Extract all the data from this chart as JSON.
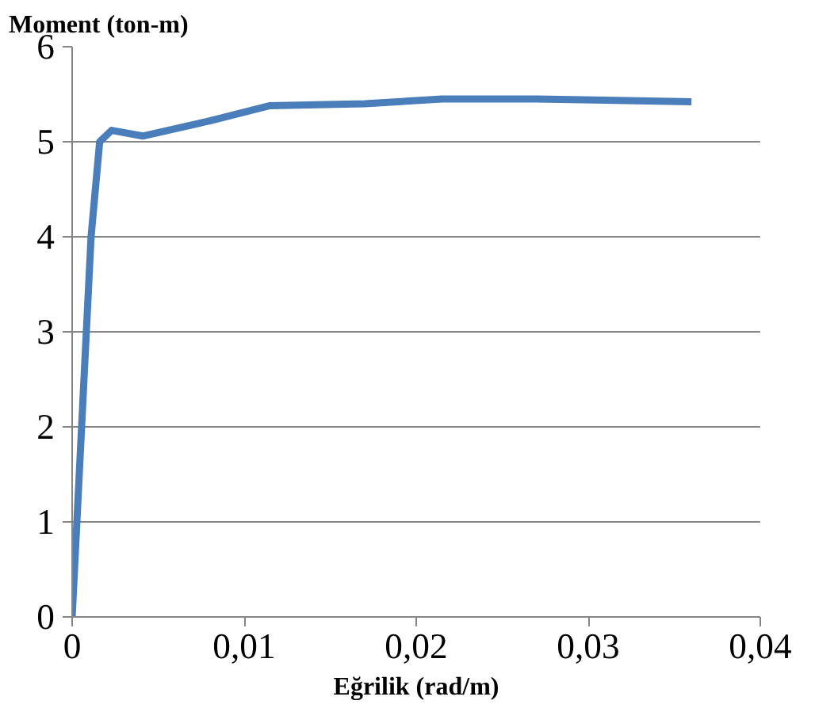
{
  "chart_data": {
    "type": "line",
    "xlabel": "Eğrilik (rad/m)",
    "ylabel": "Moment (ton-m)",
    "x": [
      0,
      0.0011,
      0.0016,
      0.0023,
      0.0041,
      0.008,
      0.0115,
      0.017,
      0.0215,
      0.027,
      0.036
    ],
    "series": [
      {
        "color": "#4a7ebb",
        "values": [
          0,
          4.0,
          5.0,
          5.12,
          5.06,
          5.22,
          5.38,
          5.4,
          5.45,
          5.45,
          5.42
        ]
      }
    ],
    "xlim": [
      0,
      0.04
    ],
    "xticks": [
      0,
      {
        "value": 0.01,
        "label": "0,01"
      },
      {
        "value": 0.02,
        "label": "0,02"
      },
      {
        "value": 0.03,
        "label": "0,03"
      },
      {
        "value": 0.04,
        "label": "0,04"
      }
    ],
    "ylim": [
      0,
      6
    ],
    "yticks": [
      0,
      1,
      2,
      3,
      4,
      5,
      6
    ],
    "grid": "y",
    "marker": "none",
    "line_style": "solid"
  }
}
